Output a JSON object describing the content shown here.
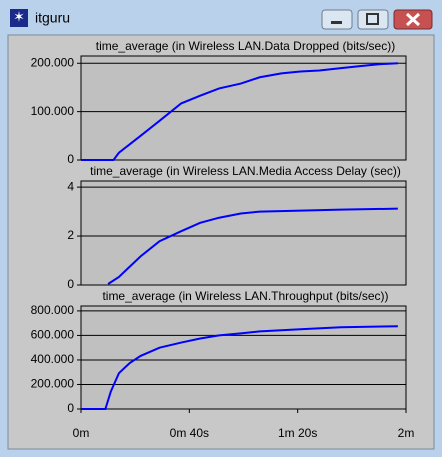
{
  "window": {
    "title": "itguru"
  },
  "chart_data": [
    {
      "type": "line",
      "title": "time_average (in Wireless LAN.Data Dropped (bits/sec))",
      "x": [
        0,
        12,
        14,
        22,
        29,
        37,
        44,
        51,
        59,
        66,
        74,
        81,
        88,
        96,
        103,
        110,
        117
      ],
      "series": [
        {
          "color": "#0000ff",
          "values": [
            0,
            0,
            15000,
            50000,
            81000,
            117000,
            133000,
            148000,
            158000,
            171000,
            179000,
            183000,
            185000,
            190000,
            194000,
            198000,
            200000
          ]
        }
      ],
      "xlim": [
        0,
        120
      ],
      "ylim": [
        0,
        215000
      ],
      "yticks": [
        0,
        {
          "value": 100000,
          "label": "100.000"
        },
        {
          "value": 200000,
          "label": "200.000"
        }
      ],
      "grid": true
    },
    {
      "type": "line",
      "title": "time_average (in Wireless LAN.Media Access Delay (sec))",
      "x": [
        10,
        14,
        22,
        29,
        37,
        44,
        51,
        59,
        66,
        81,
        96,
        117
      ],
      "series": [
        {
          "color": "#0000ff",
          "values": [
            0.04,
            0.33,
            1.17,
            1.79,
            2.2,
            2.54,
            2.75,
            2.92,
            3.0,
            3.04,
            3.08,
            3.12
          ]
        }
      ],
      "xlim": [
        0,
        120
      ],
      "ylim": [
        0,
        4.25
      ],
      "yticks": [
        0,
        2,
        4
      ],
      "grid": true
    },
    {
      "type": "line",
      "title": "time_average (in Wireless LAN.Throughput (bits/sec))",
      "x": [
        0,
        9,
        11,
        14,
        18,
        22,
        29,
        37,
        44,
        51,
        59,
        66,
        81,
        96,
        117
      ],
      "series": [
        {
          "color": "#0000ff",
          "values": [
            0,
            0,
            142000,
            292000,
            375000,
            433000,
            500000,
            542000,
            575000,
            600000,
            617000,
            633000,
            650000,
            667000,
            675000
          ]
        }
      ],
      "xlim": [
        0,
        120
      ],
      "ylim": [
        0,
        840000
      ],
      "yticks": [
        0,
        {
          "value": 200000,
          "label": "200.000"
        },
        {
          "value": 400000,
          "label": "400.000"
        },
        {
          "value": 600000,
          "label": "600.000"
        },
        {
          "value": 800000,
          "label": "800.000"
        }
      ],
      "xticks": [
        {
          "value": 0,
          "label": "0m"
        },
        {
          "value": 40,
          "label": "0m 40s"
        },
        {
          "value": 80,
          "label": "1m 20s"
        },
        {
          "value": 120,
          "label": "2m"
        }
      ],
      "grid": true
    }
  ]
}
